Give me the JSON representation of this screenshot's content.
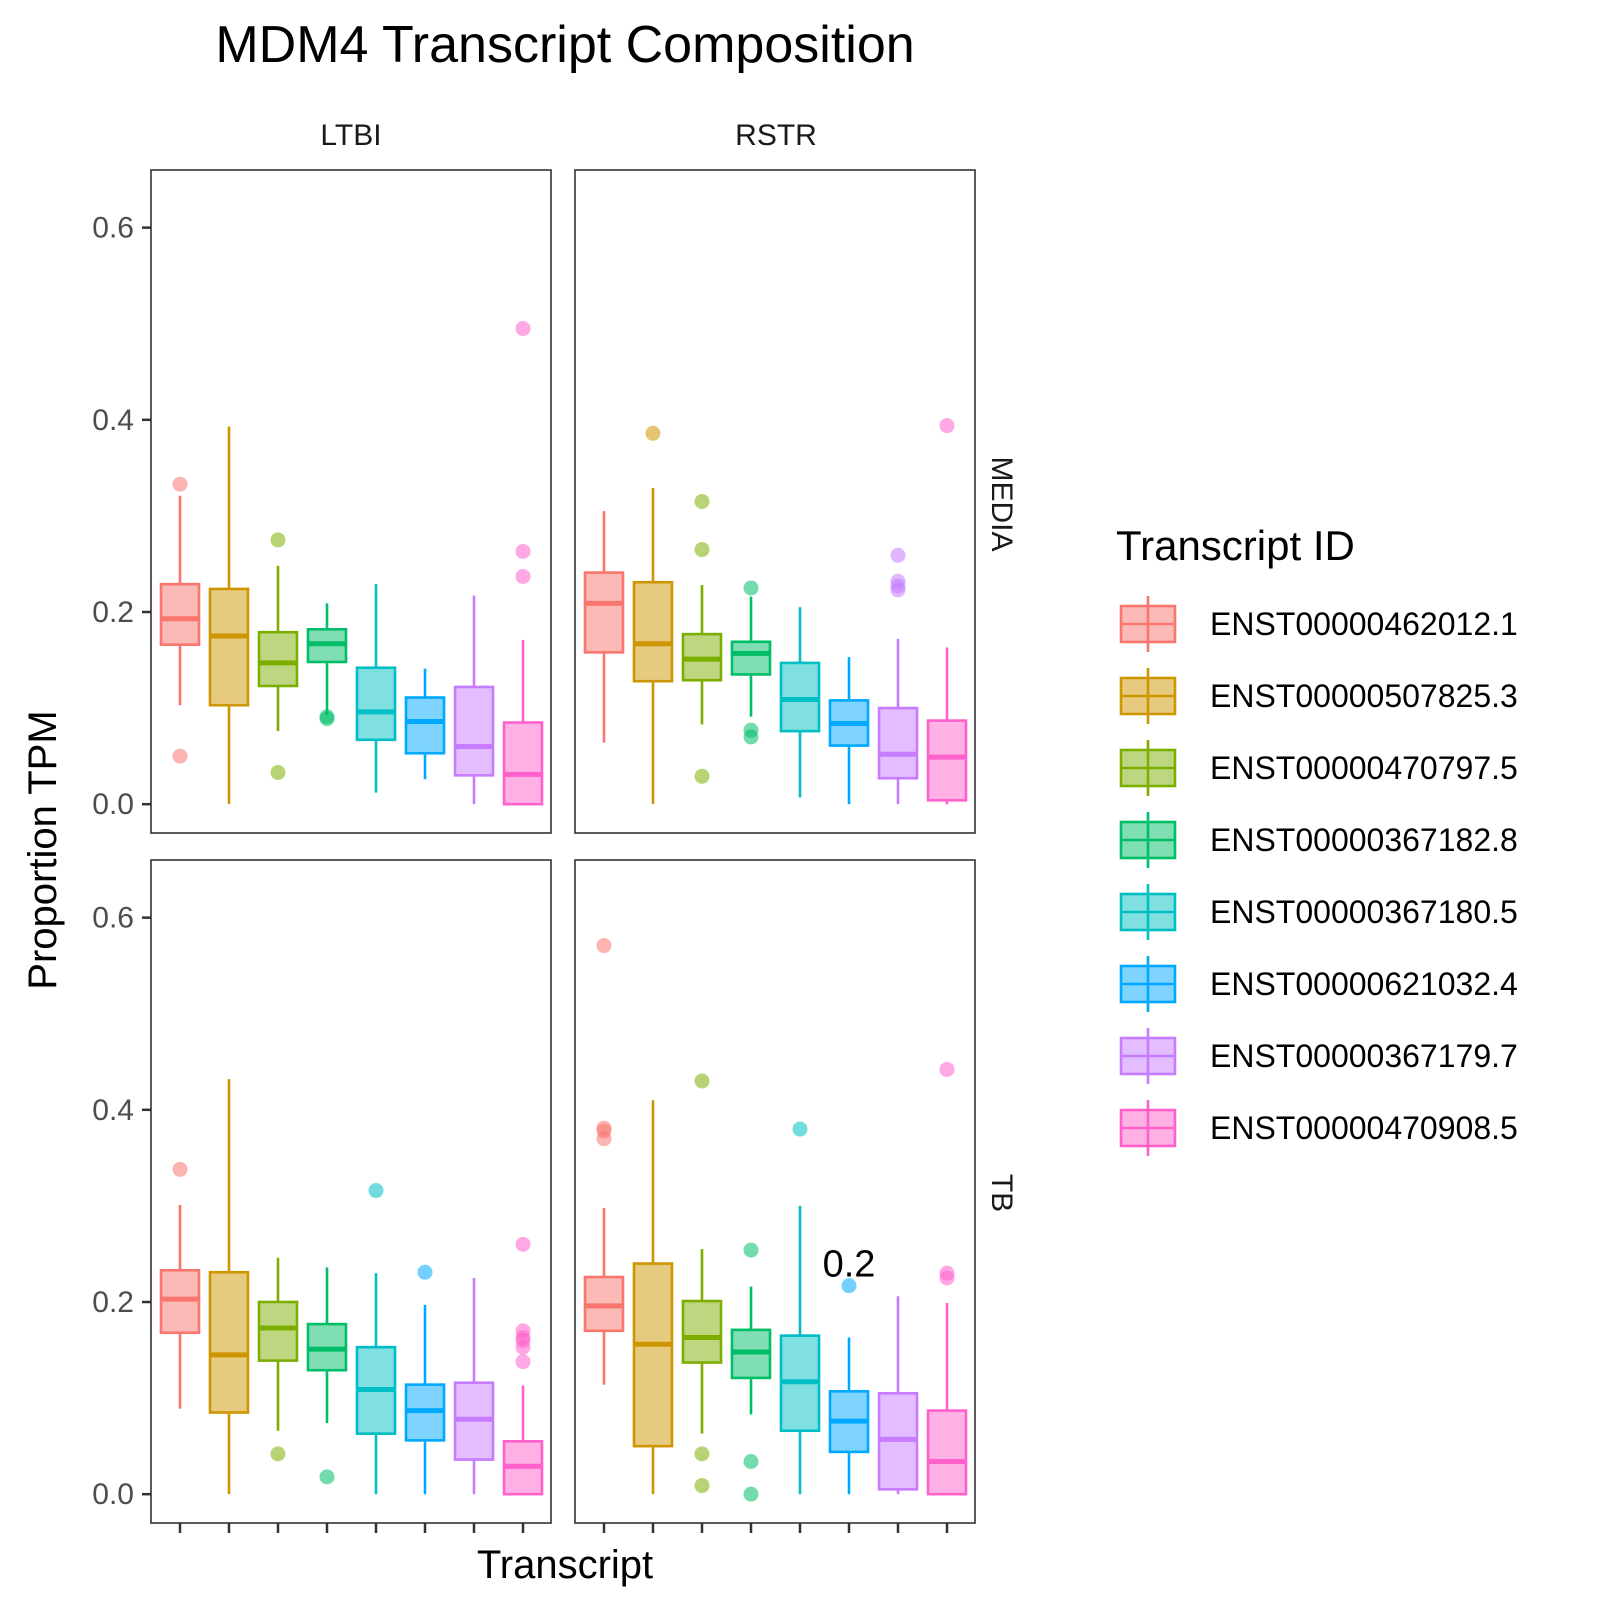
{
  "chart_data": {
    "type": "boxplot",
    "title": "MDM4 Transcript Composition",
    "xlabel": "Transcript",
    "ylabel": "Proportion TPM",
    "ylim": [
      -0.03,
      0.66
    ],
    "yticks": [
      0.0,
      0.2,
      0.4,
      0.6
    ],
    "ytick_labels": [
      "0.0",
      "0.2",
      "0.4",
      "0.6"
    ],
    "grid": false,
    "legend_position": "right",
    "legend_title": "Transcript ID",
    "columns": [
      "LTBI",
      "RSTR"
    ],
    "rows": [
      "MEDIA",
      "TB"
    ],
    "series": [
      {
        "name": "ENST00000462012.1",
        "color": "#F8766D"
      },
      {
        "name": "ENST00000507825.3",
        "color": "#CD9600"
      },
      {
        "name": "ENST00000470797.5",
        "color": "#7CAE00"
      },
      {
        "name": "ENST00000367182.8",
        "color": "#00BE67"
      },
      {
        "name": "ENST00000367180.5",
        "color": "#00BFC4"
      },
      {
        "name": "ENST00000621032.4",
        "color": "#00A9FF"
      },
      {
        "name": "ENST00000367179.7",
        "color": "#C77CFF"
      },
      {
        "name": "ENST00000470908.5",
        "color": "#FF61CC"
      }
    ],
    "panels": [
      {
        "column": "LTBI",
        "row": "MEDIA",
        "boxes": [
          {
            "min": 0.103,
            "q1": 0.166,
            "median": 0.193,
            "q3": 0.229,
            "max": 0.321,
            "outliers": [
              0.333,
              0.05
            ]
          },
          {
            "min": 0.0,
            "q1": 0.103,
            "median": 0.175,
            "q3": 0.224,
            "max": 0.393,
            "outliers": []
          },
          {
            "min": 0.076,
            "q1": 0.123,
            "median": 0.147,
            "q3": 0.179,
            "max": 0.248,
            "outliers": [
              0.275,
              0.033
            ]
          },
          {
            "min": 0.093,
            "q1": 0.148,
            "median": 0.167,
            "q3": 0.182,
            "max": 0.209,
            "outliers": [
              0.091,
              0.089
            ]
          },
          {
            "min": 0.012,
            "q1": 0.067,
            "median": 0.096,
            "q3": 0.142,
            "max": 0.229,
            "outliers": []
          },
          {
            "min": 0.026,
            "q1": 0.053,
            "median": 0.086,
            "q3": 0.111,
            "max": 0.141,
            "outliers": []
          },
          {
            "min": 0.0,
            "q1": 0.03,
            "median": 0.06,
            "q3": 0.122,
            "max": 0.217,
            "outliers": []
          },
          {
            "min": 0.0,
            "q1": 0.0,
            "median": 0.031,
            "q3": 0.085,
            "max": 0.171,
            "outliers": [
              0.495,
              0.263,
              0.237
            ]
          }
        ]
      },
      {
        "column": "RSTR",
        "row": "MEDIA",
        "boxes": [
          {
            "min": 0.064,
            "q1": 0.158,
            "median": 0.209,
            "q3": 0.241,
            "max": 0.305,
            "outliers": []
          },
          {
            "min": 0.0,
            "q1": 0.128,
            "median": 0.167,
            "q3": 0.231,
            "max": 0.329,
            "outliers": [
              0.386
            ]
          },
          {
            "min": 0.083,
            "q1": 0.129,
            "median": 0.151,
            "q3": 0.177,
            "max": 0.228,
            "outliers": [
              0.315,
              0.265,
              0.029
            ]
          },
          {
            "min": 0.091,
            "q1": 0.135,
            "median": 0.157,
            "q3": 0.169,
            "max": 0.216,
            "outliers": [
              0.225,
              0.077,
              0.07
            ]
          },
          {
            "min": 0.007,
            "q1": 0.076,
            "median": 0.109,
            "q3": 0.147,
            "max": 0.205,
            "outliers": []
          },
          {
            "min": 0.0,
            "q1": 0.061,
            "median": 0.084,
            "q3": 0.108,
            "max": 0.153,
            "outliers": []
          },
          {
            "min": 0.0,
            "q1": 0.027,
            "median": 0.052,
            "q3": 0.1,
            "max": 0.172,
            "outliers": [
              0.259,
              0.232,
              0.227,
              0.223
            ]
          },
          {
            "min": 0.0,
            "q1": 0.004,
            "median": 0.049,
            "q3": 0.087,
            "max": 0.163,
            "outliers": [
              0.394
            ]
          }
        ]
      },
      {
        "column": "LTBI",
        "row": "TB",
        "boxes": [
          {
            "min": 0.089,
            "q1": 0.168,
            "median": 0.203,
            "q3": 0.233,
            "max": 0.301,
            "outliers": [
              0.338
            ]
          },
          {
            "min": 0.0,
            "q1": 0.085,
            "median": 0.145,
            "q3": 0.231,
            "max": 0.432,
            "outliers": []
          },
          {
            "min": 0.066,
            "q1": 0.139,
            "median": 0.173,
            "q3": 0.2,
            "max": 0.246,
            "outliers": [
              0.042
            ]
          },
          {
            "min": 0.074,
            "q1": 0.129,
            "median": 0.151,
            "q3": 0.177,
            "max": 0.236,
            "outliers": [
              0.018
            ]
          },
          {
            "min": 0.0,
            "q1": 0.063,
            "median": 0.109,
            "q3": 0.153,
            "max": 0.23,
            "outliers": [
              0.316
            ]
          },
          {
            "min": 0.0,
            "q1": 0.056,
            "median": 0.087,
            "q3": 0.114,
            "max": 0.197,
            "outliers": [
              0.231
            ]
          },
          {
            "min": 0.0,
            "q1": 0.036,
            "median": 0.078,
            "q3": 0.116,
            "max": 0.225,
            "outliers": []
          },
          {
            "min": 0.0,
            "q1": 0.0,
            "median": 0.029,
            "q3": 0.055,
            "max": 0.113,
            "outliers": [
              0.26,
              0.17,
              0.163,
              0.16,
              0.153,
              0.138
            ]
          }
        ]
      },
      {
        "column": "RSTR",
        "row": "TB",
        "boxes": [
          {
            "min": 0.114,
            "q1": 0.17,
            "median": 0.196,
            "q3": 0.226,
            "max": 0.298,
            "outliers": [
              0.571,
              0.381,
              0.378,
              0.37
            ]
          },
          {
            "min": 0.0,
            "q1": 0.05,
            "median": 0.156,
            "q3": 0.24,
            "max": 0.41,
            "outliers": []
          },
          {
            "min": 0.063,
            "q1": 0.137,
            "median": 0.163,
            "q3": 0.201,
            "max": 0.255,
            "outliers": [
              0.43,
              0.042,
              0.009
            ]
          },
          {
            "min": 0.083,
            "q1": 0.121,
            "median": 0.148,
            "q3": 0.171,
            "max": 0.216,
            "outliers": [
              0.254,
              0.034,
              0.0
            ]
          },
          {
            "min": 0.0,
            "q1": 0.066,
            "median": 0.117,
            "q3": 0.165,
            "max": 0.3,
            "outliers": [
              0.38
            ]
          },
          {
            "min": 0.0,
            "q1": 0.044,
            "median": 0.076,
            "q3": 0.107,
            "max": 0.163,
            "outliers": [
              0.217
            ]
          },
          {
            "min": 0.0,
            "q1": 0.005,
            "median": 0.057,
            "q3": 0.105,
            "max": 0.206,
            "outliers": []
          },
          {
            "min": 0.0,
            "q1": 0.0,
            "median": 0.034,
            "q3": 0.087,
            "max": 0.199,
            "outliers": [
              0.442,
              0.23,
              0.225
            ]
          }
        ]
      }
    ],
    "annotations": [
      {
        "column": "RSTR",
        "row": "TB",
        "text": "0.2",
        "x_category": 5,
        "y": 0.24
      }
    ]
  }
}
